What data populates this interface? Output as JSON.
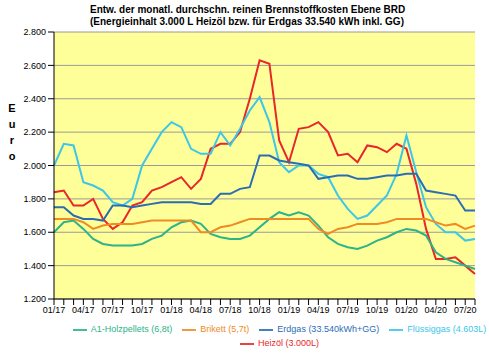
{
  "chart_data": {
    "type": "line",
    "title": "Entw. der monatl. durchschn. reinen Brennstoffkosten Ebene BRD",
    "subtitle": "(Energieinhalt 3.000 L Heizöl bzw. für Erdgas 33.540 kWh inkl. GG)",
    "y_label": "Euro",
    "categories": [
      "01/17",
      null,
      null,
      "04/17",
      null,
      null,
      "07/17",
      null,
      null,
      "10/17",
      null,
      null,
      "01/18",
      null,
      null,
      "04/18",
      null,
      null,
      "07/18",
      null,
      null,
      "10/18",
      null,
      null,
      "01/19",
      null,
      null,
      "04/19",
      null,
      null,
      "07/19",
      null,
      null,
      "10/19",
      null,
      null,
      "01/20",
      null,
      null,
      "04/20",
      null,
      null,
      "07/20",
      null
    ],
    "ylim": [
      1200,
      2800
    ],
    "yticks": [
      {
        "value": 1200,
        "label": "1.200"
      },
      {
        "value": 1400,
        "label": "1.400"
      },
      {
        "value": 1600,
        "label": "1.600"
      },
      {
        "value": 1800,
        "label": "1.800"
      },
      {
        "value": 2000,
        "label": "2.000"
      },
      {
        "value": 2200,
        "label": "2.200"
      },
      {
        "value": 2400,
        "label": "2.400"
      },
      {
        "value": 2600,
        "label": "2.600"
      },
      {
        "value": 2800,
        "label": "2.800"
      }
    ],
    "grid": true,
    "legend": "bottom",
    "series": [
      {
        "name": "Heizöl (3.000L)",
        "color": "#e8262b",
        "values": [
          1840,
          1850,
          1760,
          1760,
          1800,
          1680,
          1620,
          1660,
          1760,
          1780,
          1850,
          1870,
          1900,
          1930,
          1860,
          1920,
          2100,
          2130,
          2130,
          2200,
          2400,
          2630,
          2610,
          2150,
          2020,
          2220,
          2230,
          2260,
          2200,
          2060,
          2070,
          2020,
          2120,
          2110,
          2080,
          2130,
          2100,
          1890,
          1620,
          1440,
          1440,
          1450,
          1400,
          1350
        ]
      },
      {
        "name": "A1-Holzpellets (6,8t)",
        "color": "#2db38a",
        "values": [
          1600,
          1660,
          1670,
          1620,
          1560,
          1530,
          1520,
          1520,
          1520,
          1530,
          1560,
          1580,
          1630,
          1660,
          1670,
          1650,
          1590,
          1570,
          1560,
          1560,
          1580,
          1630,
          1680,
          1720,
          1700,
          1720,
          1700,
          1640,
          1570,
          1530,
          1510,
          1500,
          1520,
          1550,
          1570,
          1600,
          1620,
          1610,
          1580,
          1480,
          1440,
          1420,
          1400,
          1380
        ]
      },
      {
        "name": "Flüssiggas (4.603L)",
        "color": "#3cc6e8",
        "values": [
          2000,
          2130,
          2120,
          1900,
          1880,
          1850,
          1780,
          1760,
          1800,
          2000,
          2100,
          2200,
          2260,
          2230,
          2100,
          2070,
          2070,
          2200,
          2120,
          2220,
          2330,
          2410,
          2260,
          2020,
          1960,
          2000,
          2000,
          1950,
          1930,
          1820,
          1740,
          1680,
          1700,
          1760,
          1820,
          1950,
          2180,
          1960,
          1750,
          1650,
          1600,
          1600,
          1550,
          1560
        ]
      },
      {
        "name": "Erdgas (33.540kWh+GG)",
        "color": "#2a6db5",
        "values": [
          1750,
          1750,
          1700,
          1680,
          1680,
          1670,
          1760,
          1760,
          1750,
          1760,
          1770,
          1780,
          1780,
          1780,
          1780,
          1770,
          1770,
          1830,
          1830,
          1860,
          1870,
          2060,
          2060,
          2030,
          2020,
          2010,
          2000,
          1920,
          1930,
          1940,
          1940,
          1920,
          1920,
          1930,
          1940,
          1940,
          1950,
          1950,
          1850,
          1840,
          1830,
          1820,
          1730,
          1730
        ]
      },
      {
        "name": "Brikett (5,7t)",
        "color": "#f08a24",
        "values": [
          1680,
          1680,
          1680,
          1660,
          1620,
          1640,
          1650,
          1650,
          1650,
          1660,
          1670,
          1670,
          1670,
          1670,
          1670,
          1600,
          1600,
          1630,
          1640,
          1660,
          1680,
          1680,
          1680,
          1680,
          1680,
          1680,
          1680,
          1620,
          1590,
          1620,
          1630,
          1650,
          1650,
          1650,
          1660,
          1680,
          1680,
          1680,
          1680,
          1660,
          1640,
          1650,
          1620,
          1640
        ]
      }
    ]
  }
}
